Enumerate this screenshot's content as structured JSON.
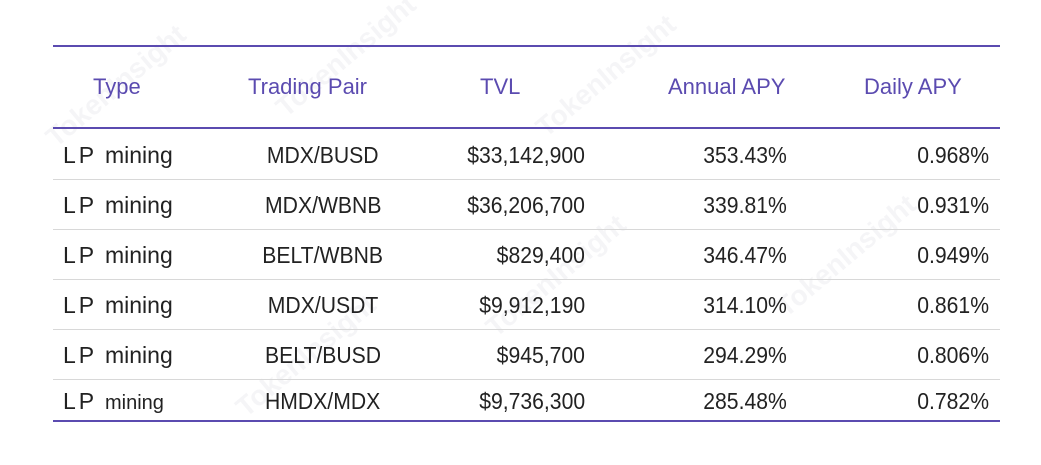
{
  "table": {
    "headers": {
      "type": "Type",
      "pair": "Trading Pair",
      "tvl": "TVL",
      "annual": "Annual APY",
      "daily": "Daily APY"
    },
    "rows": [
      {
        "lp": "LP",
        "mining": "mining",
        "pair": "MDX/BUSD",
        "tvl": "$33,142,900",
        "annual": "353.43%",
        "daily": "0.968%"
      },
      {
        "lp": "LP",
        "mining": "mining",
        "pair": "MDX/WBNB",
        "tvl": "$36,206,700",
        "annual": "339.81%",
        "daily": "0.931%"
      },
      {
        "lp": "LP",
        "mining": "mining",
        "pair": "BELT/WBNB",
        "tvl": "$829,400",
        "annual": "346.47%",
        "daily": "0.949%"
      },
      {
        "lp": "LP",
        "mining": "mining",
        "pair": "MDX/USDT",
        "tvl": "$9,912,190",
        "annual": "314.10%",
        "daily": "0.861%"
      },
      {
        "lp": "LP",
        "mining": "mining",
        "pair": "BELT/BUSD",
        "tvl": "$945,700",
        "annual": "294.29%",
        "daily": "0.806%"
      },
      {
        "lp": "LP",
        "mining": "mining",
        "pair": "HMDX/MDX",
        "tvl": "$9,736,300",
        "annual": "285.48%",
        "daily": "0.782%"
      }
    ]
  },
  "watermark": "TokenInsight",
  "colors": {
    "accent": "#5b4bb0",
    "text": "#222222",
    "separator": "#d8d8d8"
  }
}
